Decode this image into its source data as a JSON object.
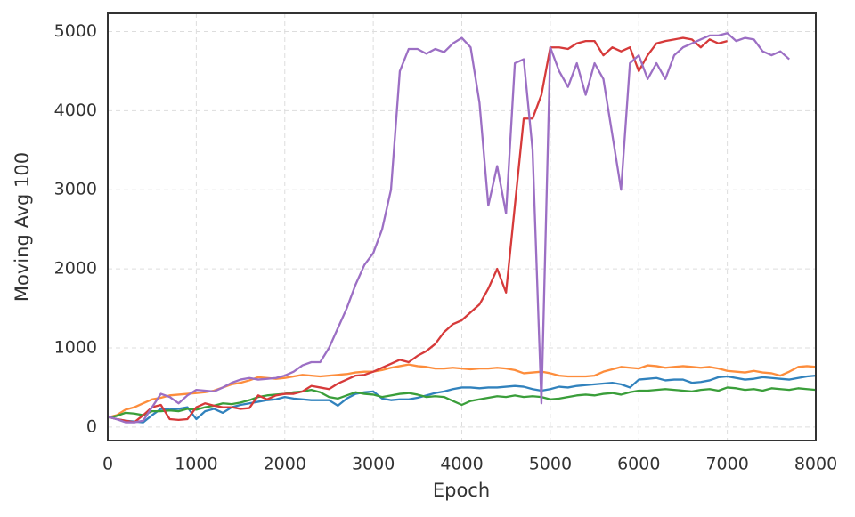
{
  "chart_data": {
    "type": "line",
    "xlabel": "Epoch",
    "ylabel": "Moving Avg 100",
    "xlim": [
      0,
      8000
    ],
    "ylim": [
      -170,
      5230
    ],
    "xticks": [
      0,
      1000,
      2000,
      3000,
      4000,
      5000,
      6000,
      7000,
      8000
    ],
    "yticks": [
      0,
      1000,
      2000,
      3000,
      4000,
      5000
    ],
    "grid": true,
    "x": [
      0,
      100,
      200,
      300,
      400,
      500,
      600,
      700,
      800,
      900,
      1000,
      1100,
      1200,
      1300,
      1400,
      1500,
      1600,
      1700,
      1800,
      1900,
      2000,
      2100,
      2200,
      2300,
      2400,
      2500,
      2600,
      2700,
      2800,
      2900,
      3000,
      3100,
      3200,
      3300,
      3400,
      3500,
      3600,
      3700,
      3800,
      3900,
      4000,
      4100,
      4200,
      4300,
      4400,
      4500,
      4600,
      4700,
      4800,
      4900,
      5000,
      5100,
      5200,
      5300,
      5400,
      5500,
      5600,
      5700,
      5800,
      5900,
      6000,
      6100,
      6200,
      6300,
      6400,
      6500,
      6600,
      6700,
      6800,
      6900,
      7000,
      7100,
      7200,
      7300,
      7400,
      7500,
      7600,
      7700,
      7800,
      7900,
      8000
    ],
    "series": [
      {
        "color": "#3182bd",
        "values": [
          130,
          100,
          80,
          70,
          60,
          150,
          230,
          220,
          230,
          250,
          100,
          200,
          230,
          180,
          250,
          280,
          300,
          320,
          340,
          350,
          380,
          360,
          350,
          340,
          340,
          340,
          270,
          360,
          420,
          440,
          450,
          360,
          340,
          350,
          350,
          370,
          400,
          430,
          450,
          480,
          500,
          500,
          490,
          500,
          500,
          510,
          520,
          510,
          480,
          460,
          480,
          510,
          500,
          520,
          530,
          540,
          550,
          560,
          540,
          500,
          600,
          610,
          620,
          590,
          600,
          600,
          560,
          570,
          590,
          630,
          640,
          620,
          600,
          610,
          630,
          620,
          610,
          600,
          620,
          640,
          650
        ]
      },
      {
        "color": "#fd8d3c",
        "values": [
          120,
          150,
          220,
          250,
          300,
          350,
          370,
          400,
          410,
          420,
          430,
          440,
          460,
          500,
          540,
          560,
          590,
          630,
          620,
          610,
          620,
          640,
          660,
          650,
          640,
          650,
          660,
          670,
          690,
          700,
          700,
          720,
          750,
          770,
          790,
          770,
          760,
          740,
          740,
          750,
          740,
          730,
          740,
          740,
          750,
          740,
          720,
          680,
          690,
          700,
          680,
          650,
          640,
          640,
          640,
          650,
          700,
          730,
          760,
          750,
          740,
          780,
          770,
          750,
          760,
          770,
          760,
          750,
          760,
          740,
          710,
          700,
          690,
          710,
          690,
          680,
          650,
          700,
          760,
          770,
          760
        ]
      },
      {
        "color": "#3a9e3a",
        "values": [
          120,
          140,
          180,
          170,
          150,
          200,
          200,
          210,
          200,
          230,
          220,
          250,
          270,
          300,
          290,
          310,
          340,
          380,
          400,
          410,
          420,
          440,
          450,
          470,
          440,
          380,
          360,
          400,
          440,
          420,
          410,
          380,
          400,
          420,
          430,
          410,
          380,
          390,
          380,
          330,
          280,
          330,
          350,
          370,
          390,
          380,
          400,
          380,
          390,
          380,
          350,
          360,
          380,
          400,
          410,
          400,
          420,
          430,
          410,
          440,
          460,
          460,
          470,
          480,
          470,
          460,
          450,
          470,
          480,
          460,
          500,
          490,
          470,
          480,
          460,
          490,
          480,
          470,
          490,
          480,
          470
        ]
      },
      {
        "color": "#d63a3a",
        "values": [
          130,
          100,
          80,
          60,
          150,
          250,
          280,
          100,
          90,
          100,
          250,
          300,
          270,
          250,
          250,
          230,
          240,
          400,
          350,
          400,
          420,
          420,
          450,
          520,
          500,
          480,
          550,
          600,
          650,
          660,
          700,
          750,
          800,
          850,
          820,
          900,
          960,
          1050,
          1200,
          1300,
          1350,
          1450,
          1550,
          1750,
          2000,
          1700,
          2800,
          3900,
          3900,
          4200,
          4800,
          4800,
          4780,
          4850,
          4880,
          4880,
          4700,
          4800,
          4750,
          4800,
          4500,
          4700,
          4850,
          4880,
          4900,
          4920,
          4900,
          4800,
          4900,
          4850,
          4880,
          null,
          null,
          null,
          null,
          null,
          null,
          null,
          null,
          null,
          null
        ]
      },
      {
        "color": "#9c6fc4",
        "values": [
          130,
          100,
          60,
          60,
          80,
          250,
          420,
          380,
          300,
          400,
          470,
          460,
          450,
          500,
          560,
          600,
          620,
          600,
          610,
          620,
          650,
          700,
          780,
          820,
          820,
          1000,
          1250,
          1500,
          1800,
          2050,
          2200,
          2500,
          3000,
          4500,
          4780,
          4780,
          4720,
          4780,
          4740,
          4850,
          4920,
          4800,
          4100,
          2800,
          3300,
          2700,
          4600,
          4650,
          3500,
          300,
          4800,
          4500,
          4300,
          4600,
          4200,
          4600,
          4400,
          3700,
          3000,
          4600,
          4700,
          4400,
          4600,
          4400,
          4700,
          4800,
          4850,
          4900,
          4950,
          4950,
          4980,
          4880,
          4920,
          4900,
          4750,
          4700,
          4750,
          4650,
          null,
          null,
          null
        ]
      }
    ]
  }
}
